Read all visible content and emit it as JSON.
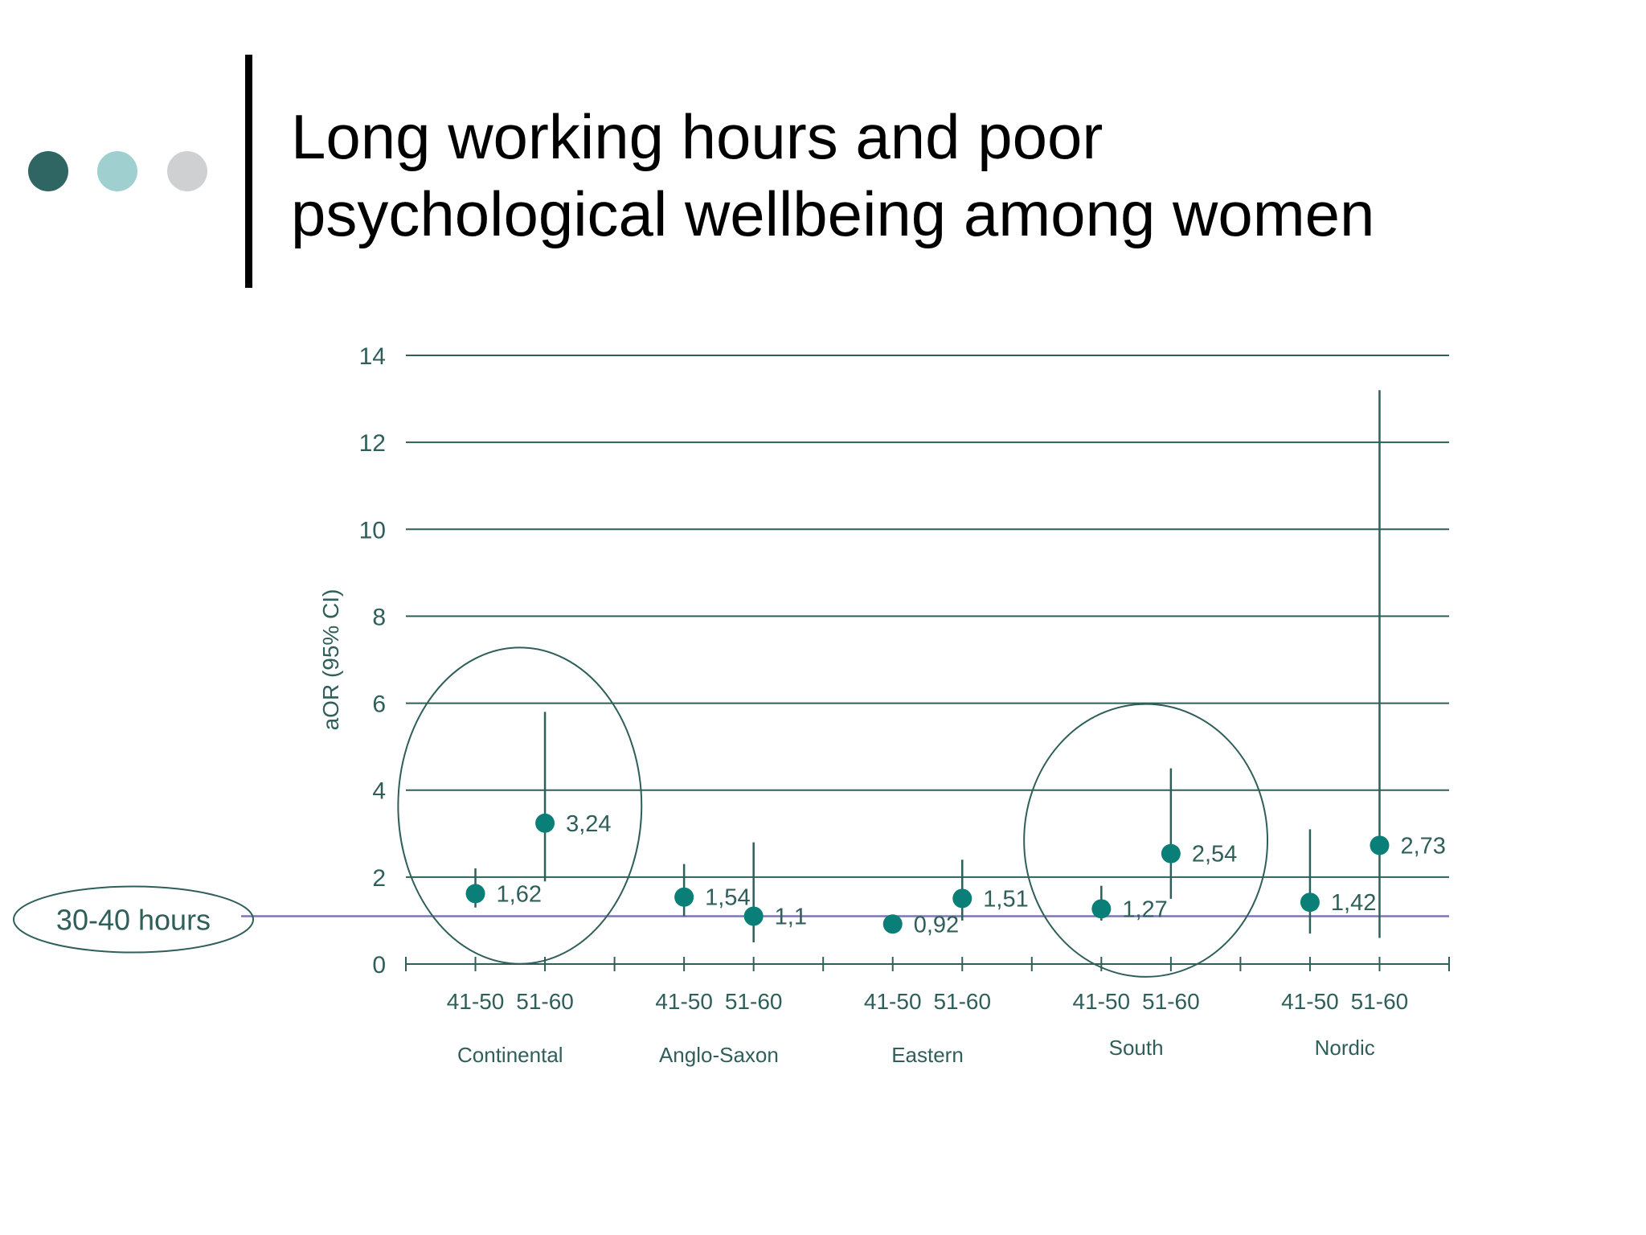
{
  "slide": {
    "title_line1": "Long working hours and poor",
    "title_line2": "psychological wellbeing among women",
    "decor_colors": [
      "#2f6663",
      "#9fcfce",
      "#cfd0d2"
    ]
  },
  "colors": {
    "axis": "#2f5f5a",
    "point": "#0a7f78",
    "reference_line": "#7b78b0",
    "text": "#2f5f5a"
  },
  "chart_data": {
    "type": "scatter",
    "ylabel": "aOR (95% CI)",
    "ylim": [
      0,
      14
    ],
    "yticks": [
      0,
      2,
      4,
      6,
      8,
      10,
      12,
      14
    ],
    "grid": true,
    "reference_line": {
      "y": 1.1,
      "label": "30-40 hours"
    },
    "groups": [
      {
        "name": "Continental",
        "points": [
          {
            "age": "41-50",
            "aor": 1.62,
            "label": "1,62",
            "ci": [
              1.3,
              2.2
            ]
          },
          {
            "age": "51-60",
            "aor": 3.24,
            "label": "3,24",
            "ci": [
              1.9,
              5.8
            ]
          }
        ]
      },
      {
        "name": "Anglo-Saxon",
        "points": [
          {
            "age": "41-50",
            "aor": 1.54,
            "label": "1,54",
            "ci": [
              1.1,
              2.3
            ]
          },
          {
            "age": "51-60",
            "aor": 1.1,
            "label": "1,1",
            "ci": [
              0.5,
              2.8
            ]
          }
        ]
      },
      {
        "name": "Eastern",
        "points": [
          {
            "age": "41-50",
            "aor": 0.92,
            "label": "0,92",
            "ci": [
              0.8,
              1.1
            ]
          },
          {
            "age": "51-60",
            "aor": 1.51,
            "label": "1,51",
            "ci": [
              1.0,
              2.4
            ]
          }
        ]
      },
      {
        "name": "South",
        "points": [
          {
            "age": "41-50",
            "aor": 1.27,
            "label": "1,27",
            "ci": [
              1.0,
              1.8
            ]
          },
          {
            "age": "51-60",
            "aor": 2.54,
            "label": "2,54",
            "ci": [
              1.5,
              4.5
            ]
          }
        ]
      },
      {
        "name": "Nordic",
        "points": [
          {
            "age": "41-50",
            "aor": 1.42,
            "label": "1,42",
            "ci": [
              0.7,
              3.1
            ]
          },
          {
            "age": "51-60",
            "aor": 2.73,
            "label": "2,73",
            "ci": [
              0.6,
              13.2
            ]
          }
        ]
      }
    ],
    "highlighted_groups": [
      "Continental",
      "South"
    ]
  }
}
